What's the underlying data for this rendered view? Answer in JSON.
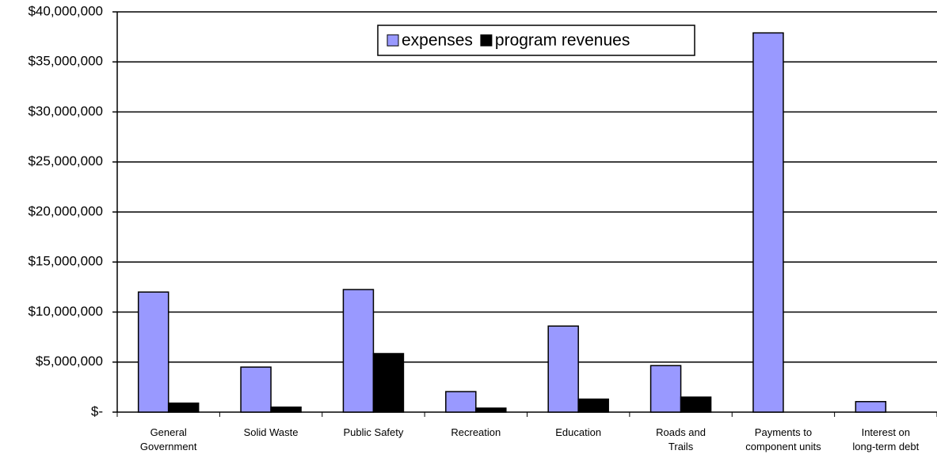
{
  "chart_data": {
    "type": "bar",
    "categories": [
      [
        "General",
        "Government"
      ],
      [
        "Solid Waste"
      ],
      [
        "Public Safety"
      ],
      [
        "Recreation"
      ],
      [
        "Education"
      ],
      [
        "Roads and",
        "Trails"
      ],
      [
        "Payments to",
        "component units"
      ],
      [
        "Interest on",
        "long-term debt"
      ]
    ],
    "series": [
      {
        "name": "expenses",
        "color": "#9999ff",
        "values": [
          12000000,
          4500000,
          12250000,
          2050000,
          8600000,
          4650000,
          37900000,
          1050000
        ]
      },
      {
        "name": "program revenues",
        "color": "#000000",
        "values": [
          900000,
          500000,
          5850000,
          400000,
          1300000,
          1500000,
          0,
          0
        ]
      }
    ],
    "ylim": [
      0,
      40000000
    ],
    "yticks": [
      {
        "value": 0,
        "label": "$-"
      },
      {
        "value": 5000000,
        "label": "$5,000,000"
      },
      {
        "value": 10000000,
        "label": "$10,000,000"
      },
      {
        "value": 15000000,
        "label": "$15,000,000"
      },
      {
        "value": 20000000,
        "label": "$20,000,000"
      },
      {
        "value": 25000000,
        "label": "$25,000,000"
      },
      {
        "value": 30000000,
        "label": "$30,000,000"
      },
      {
        "value": 35000000,
        "label": "$35,000,000"
      },
      {
        "value": 40000000,
        "label": "$40,000,000"
      }
    ],
    "grid": true,
    "legend": "top"
  }
}
